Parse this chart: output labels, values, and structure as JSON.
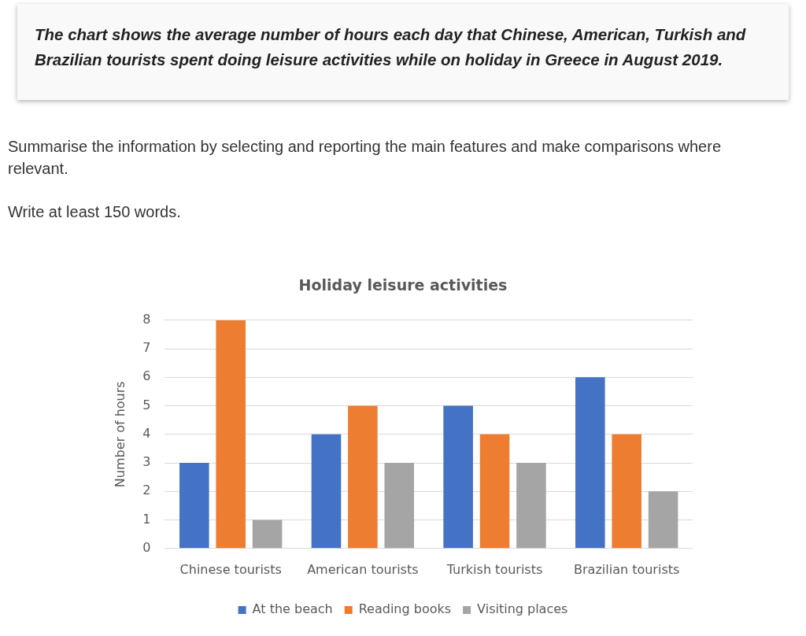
{
  "chart_data": {
    "type": "bar",
    "title": "Holiday leisure activities",
    "ylabel": "Number of hours",
    "categories": [
      "Chinese tourists",
      "American tourists",
      "Turkish tourists",
      "Brazilian tourists"
    ],
    "series": [
      {
        "name": "At the beach",
        "color": "#4472c4",
        "values": [
          3,
          4,
          5,
          6
        ]
      },
      {
        "name": "Reading books",
        "color": "#ed7d31",
        "values": [
          8,
          5,
          4,
          4
        ]
      },
      {
        "name": "Visiting places",
        "color": "#a5a5a5",
        "values": [
          1,
          3,
          3,
          2
        ]
      }
    ],
    "ylim": [
      0,
      8
    ],
    "yticks": [
      0,
      1,
      2,
      3,
      4,
      5,
      6,
      7,
      8
    ],
    "grid": "y",
    "legend": "bottom",
    "annotations": [
      "The chart shows the average number of hours each day that Chinese, American, Turkish and Brazilian tourists spent doing leisure activities while on holiday in Greece in August 2019.",
      "Summarise the information by selecting and reporting the main features and make comparisons where relevant.",
      "Write at least 150 words."
    ]
  }
}
